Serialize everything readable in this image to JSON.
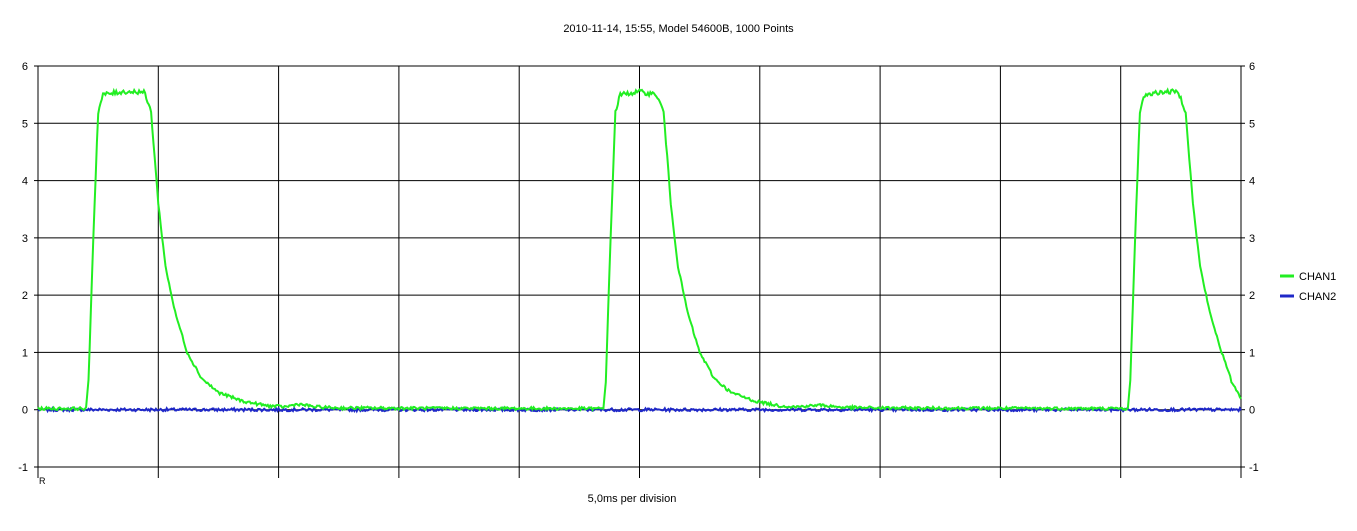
{
  "chart_data": {
    "type": "line",
    "title": "2010-11-14, 15:55, Model 54600B,  1000 Points",
    "xlabel": "5,0ms per division",
    "ylabel": "",
    "ylim": [
      -1,
      6
    ],
    "xlim": [
      0,
      50
    ],
    "x_divisions": 10,
    "x_unit": "ms",
    "yticks": [
      "-1",
      "0",
      "1",
      "2",
      "3",
      "4",
      "5",
      "6"
    ],
    "grid": true,
    "legend_position": "right",
    "series": [
      {
        "name": "CHAN1",
        "color": "#22ee22",
        "points": [
          [
            0,
            0.02
          ],
          [
            2.0,
            0.02
          ],
          [
            2.1,
            0.5
          ],
          [
            2.3,
            3.0
          ],
          [
            2.5,
            5.2
          ],
          [
            2.7,
            5.5
          ],
          [
            3.5,
            5.55
          ],
          [
            4.4,
            5.55
          ],
          [
            4.7,
            5.2
          ],
          [
            5.0,
            3.6
          ],
          [
            5.3,
            2.5
          ],
          [
            5.7,
            1.7
          ],
          [
            6.2,
            1.0
          ],
          [
            6.8,
            0.55
          ],
          [
            7.5,
            0.3
          ],
          [
            8.5,
            0.15
          ],
          [
            9.5,
            0.07
          ],
          [
            10.3,
            0.05
          ],
          [
            10.8,
            0.1
          ],
          [
            11.5,
            0.05
          ],
          [
            12.5,
            0.03
          ],
          [
            21.5,
            0.02
          ],
          [
            23.5,
            0.02
          ],
          [
            23.6,
            0.5
          ],
          [
            23.8,
            3.0
          ],
          [
            24.0,
            5.2
          ],
          [
            24.2,
            5.5
          ],
          [
            25.0,
            5.55
          ],
          [
            25.7,
            5.5
          ],
          [
            26.0,
            5.2
          ],
          [
            26.3,
            3.6
          ],
          [
            26.6,
            2.5
          ],
          [
            27.0,
            1.7
          ],
          [
            27.5,
            1.0
          ],
          [
            28.1,
            0.55
          ],
          [
            28.8,
            0.3
          ],
          [
            29.8,
            0.15
          ],
          [
            30.8,
            0.07
          ],
          [
            31.5,
            0.05
          ],
          [
            32.5,
            0.08
          ],
          [
            33.5,
            0.04
          ],
          [
            35.0,
            0.03
          ],
          [
            45.0,
            0.02
          ],
          [
            45.3,
            0.02
          ],
          [
            45.4,
            0.5
          ],
          [
            45.6,
            3.0
          ],
          [
            45.8,
            5.2
          ],
          [
            46.0,
            5.5
          ],
          [
            46.8,
            5.55
          ],
          [
            47.4,
            5.55
          ],
          [
            47.7,
            5.2
          ],
          [
            48.0,
            3.6
          ],
          [
            48.3,
            2.5
          ],
          [
            48.7,
            1.7
          ],
          [
            49.2,
            1.0
          ],
          [
            49.6,
            0.5
          ],
          [
            50.0,
            0.2
          ]
        ]
      },
      {
        "name": "CHAN2",
        "color": "#1f28c8",
        "points": [
          [
            0,
            0.0
          ],
          [
            50,
            0.0
          ]
        ]
      }
    ]
  },
  "left_axis_marker": "R"
}
